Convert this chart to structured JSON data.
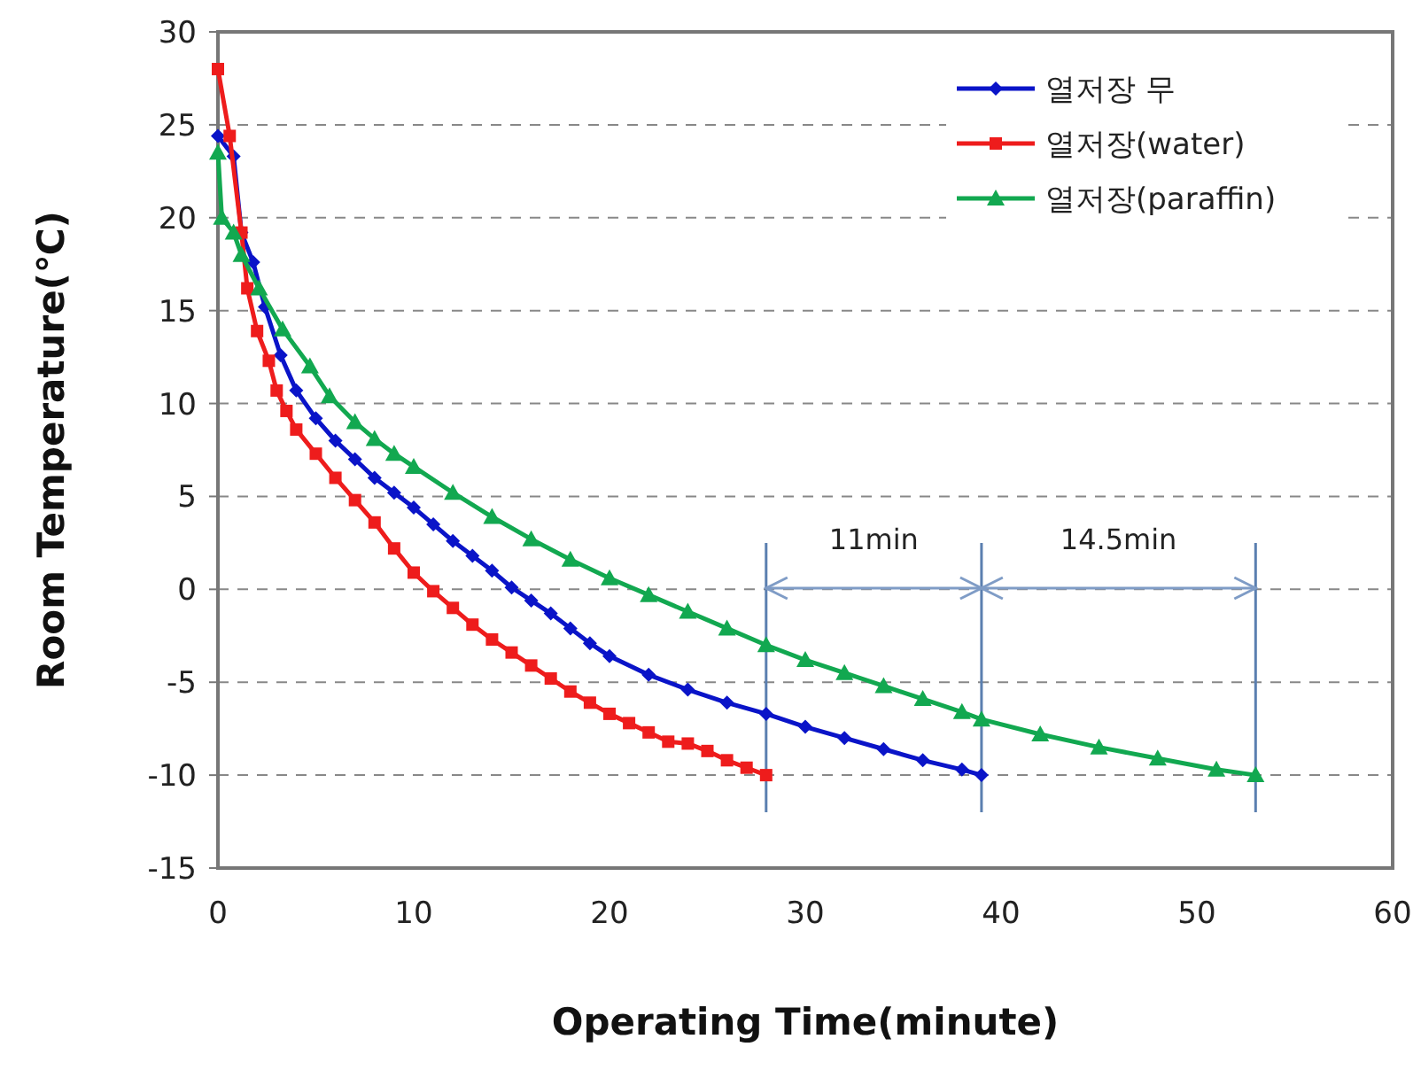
{
  "chart_data": {
    "type": "line",
    "xlabel": "Operating Time(minute)",
    "ylabel": "Room Temperature(℃)",
    "xlim": [
      0,
      60
    ],
    "xticks": [
      0,
      10,
      20,
      30,
      40,
      50,
      60
    ],
    "ylim": [
      -15,
      30
    ],
    "yticks": [
      -15,
      -10,
      -5,
      0,
      5,
      10,
      15,
      20,
      25,
      30
    ],
    "grid": "y",
    "legend": "top right",
    "series": [
      {
        "name": "열저장 무",
        "color": "#0a14c8",
        "marker": "diamond",
        "x": [
          0,
          0.8,
          1.2,
          1.8,
          2.4,
          3.2,
          4,
          5,
          6,
          7,
          8,
          9,
          10,
          11,
          12,
          13,
          14,
          15,
          16,
          17,
          18,
          19,
          20,
          22,
          24,
          26,
          28,
          30,
          32,
          34,
          36,
          38,
          39
        ],
        "values": [
          24.4,
          23.3,
          19.2,
          17.6,
          15.2,
          12.6,
          10.7,
          9.2,
          8.0,
          7.0,
          6.0,
          5.2,
          4.4,
          3.5,
          2.6,
          1.8,
          1.0,
          0.1,
          -0.6,
          -1.3,
          -2.1,
          -2.9,
          -3.6,
          -4.6,
          -5.4,
          -6.1,
          -6.7,
          -7.4,
          -8.0,
          -8.6,
          -9.2,
          -9.7,
          -10
        ]
      },
      {
        "name": "열저장(water)",
        "color": "#ee1c1c",
        "marker": "square",
        "x": [
          0,
          0.6,
          1.2,
          1.5,
          2,
          2.6,
          3,
          3.5,
          4,
          5,
          6,
          7,
          8,
          9,
          10,
          11,
          12,
          13,
          14,
          15,
          16,
          17,
          18,
          19,
          20,
          21,
          22,
          23,
          24,
          25,
          26,
          27,
          28
        ],
        "values": [
          28,
          24.4,
          19.2,
          16.2,
          13.9,
          12.3,
          10.7,
          9.6,
          8.6,
          7.3,
          6.0,
          4.8,
          3.6,
          2.2,
          0.9,
          -0.1,
          -1.0,
          -1.9,
          -2.7,
          -3.4,
          -4.1,
          -4.8,
          -5.5,
          -6.1,
          -6.7,
          -7.2,
          -7.7,
          -8.2,
          -8.3,
          -8.7,
          -9.2,
          -9.6,
          -10
        ]
      },
      {
        "name": "열저장(paraffin)",
        "color": "#12a850",
        "marker": "triangle",
        "x": [
          0,
          0.2,
          0.8,
          1.2,
          2.1,
          3.3,
          4.7,
          5.7,
          7,
          8,
          9,
          10,
          12,
          14,
          16,
          18,
          20,
          22,
          24,
          26,
          28,
          30,
          32,
          34,
          36,
          38,
          39,
          42,
          45,
          48,
          51,
          53
        ],
        "values": [
          23.5,
          20,
          19.2,
          18,
          16.2,
          14,
          12,
          10.4,
          9.0,
          8.1,
          7.3,
          6.6,
          5.2,
          3.9,
          2.7,
          1.6,
          0.6,
          -0.3,
          -1.2,
          -2.1,
          -3.0,
          -3.8,
          -4.5,
          -5.2,
          -5.9,
          -6.6,
          -7.0,
          -7.8,
          -8.5,
          -9.1,
          -9.7,
          -10
        ]
      }
    ],
    "ref_lines": [
      {
        "axis": "x",
        "value": 28,
        "color": "#5b7fb0"
      },
      {
        "axis": "x",
        "value": 39,
        "color": "#5b7fb0"
      },
      {
        "axis": "x",
        "value": 53,
        "color": "#5b7fb0"
      }
    ],
    "annotations": [
      "11min",
      "14.5min"
    ]
  }
}
